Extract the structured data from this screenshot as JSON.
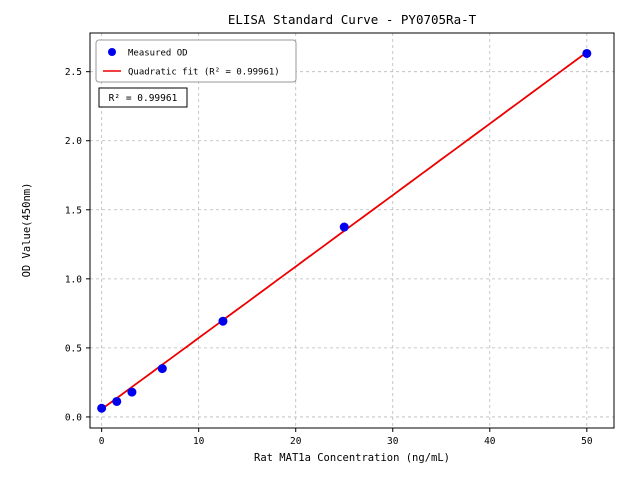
{
  "chart_data": {
    "type": "scatter",
    "title": "ELISA Standard Curve - PY0705Ra-T",
    "xlabel": "Rat MAT1a Concentration (ng/mL)",
    "ylabel": "OD Value(450nm)",
    "xlim": [
      -1.2,
      52.8
    ],
    "ylim": [
      -0.08,
      2.78
    ],
    "xticks": [
      0,
      10,
      20,
      30,
      40,
      50
    ],
    "xtick_labels": [
      "0",
      "10",
      "20",
      "30",
      "40",
      "50"
    ],
    "yticks": [
      0.0,
      0.5,
      1.0,
      1.5,
      2.0,
      2.5
    ],
    "ytick_labels": [
      "0.0",
      "0.5",
      "1.0",
      "1.5",
      "2.0",
      "2.5"
    ],
    "grid": true,
    "grid_style": "dashed",
    "series": [
      {
        "name": "Measured OD",
        "type": "scatter",
        "color": "#0000ee",
        "x": [
          0,
          1.56,
          3.12,
          6.25,
          12.5,
          25,
          50
        ],
        "y": [
          0.063,
          0.112,
          0.18,
          0.35,
          0.693,
          1.375,
          2.632
        ]
      },
      {
        "name": "Quadratic fit (R² = 0.99961)",
        "type": "line",
        "color": "#ee0000",
        "fit_coeffs": [
          2e-06,
          0.0516,
          0.056
        ],
        "x_range": [
          0,
          50
        ]
      }
    ],
    "annotation": "R² = 0.99961",
    "legend": {
      "position": "upper left"
    },
    "colors": {
      "grid": "#b8b8b8",
      "axis": "#000000",
      "legend_border": "#999999",
      "annotation_border": "#000000"
    }
  }
}
